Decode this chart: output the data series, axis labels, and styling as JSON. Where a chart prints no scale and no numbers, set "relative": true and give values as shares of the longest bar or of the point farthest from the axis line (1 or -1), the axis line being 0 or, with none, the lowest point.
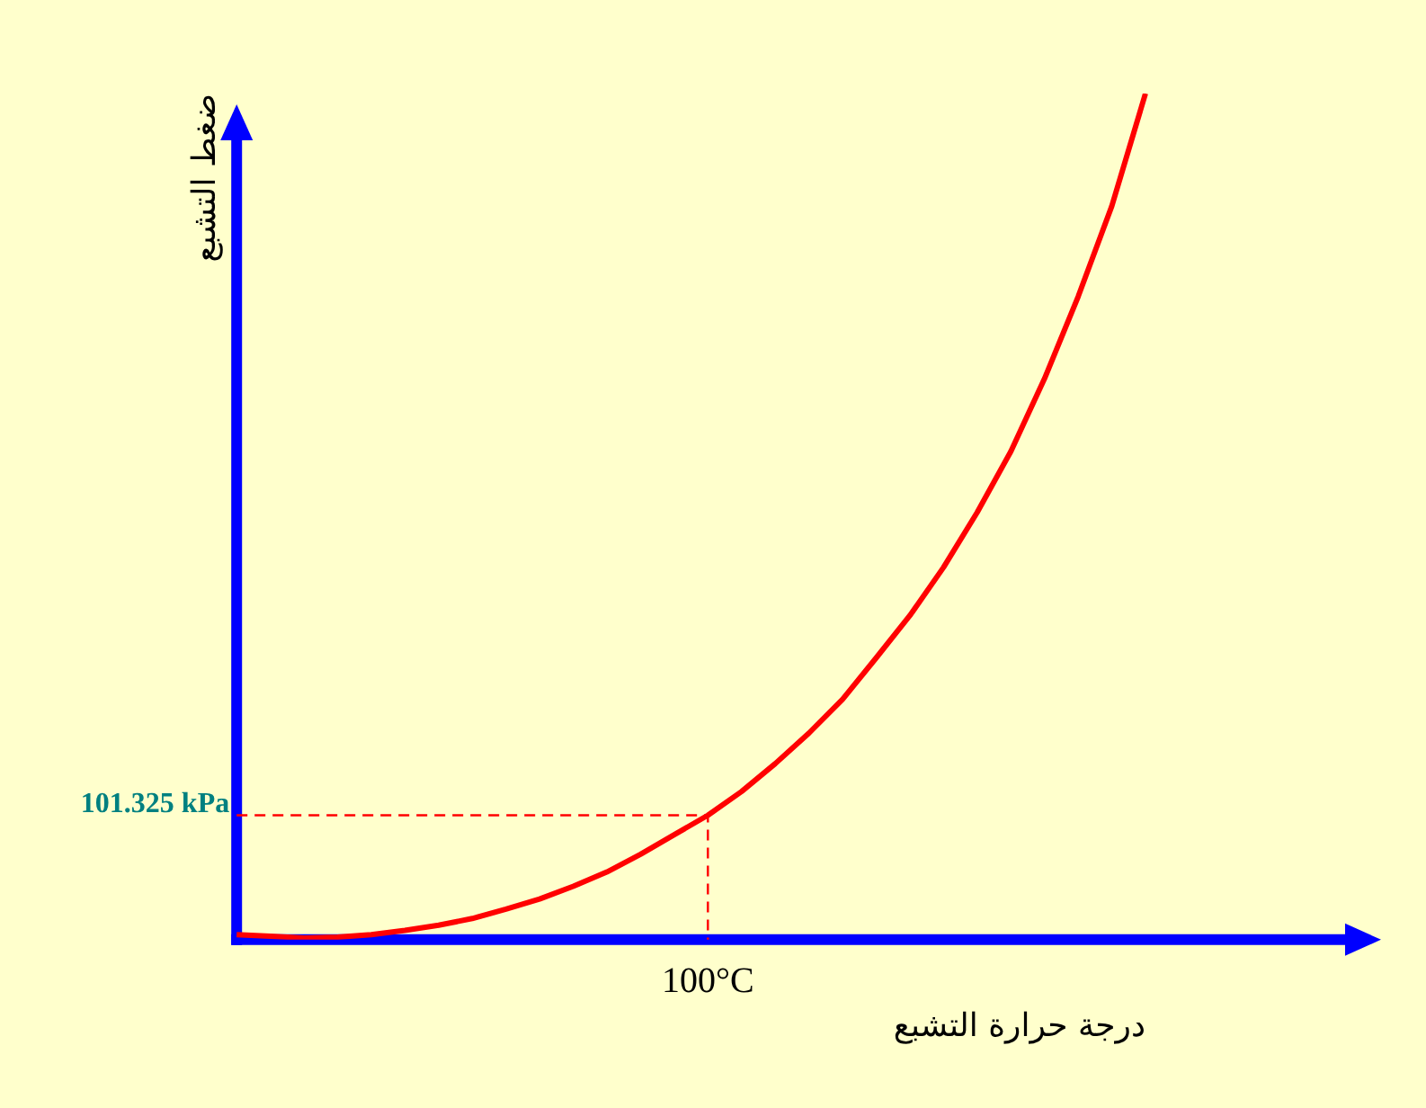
{
  "chart_data": {
    "type": "line",
    "relative": true,
    "xlabel": "درجة حرارة التشبع",
    "ylabel": "ضغط التشبع",
    "categories": [
      null,
      null,
      null,
      null,
      null,
      null,
      null,
      null,
      null,
      null,
      null,
      null,
      null,
      null,
      null,
      null,
      null,
      null,
      null,
      null,
      null,
      null,
      null,
      null,
      null,
      null,
      null,
      null
    ],
    "series": [
      {
        "color": "#ff0000",
        "values": [
          0.006,
          0.004,
          0.002,
          0.003,
          0.006,
          0.011,
          0.017,
          0.025,
          0.036,
          0.048,
          0.063,
          0.08,
          0.101,
          0.124,
          0.147,
          0.175,
          0.208,
          0.244,
          0.284,
          0.333,
          0.383,
          0.44,
          0.505,
          0.577,
          0.663,
          0.76,
          0.867,
          1
        ]
      }
    ],
    "ref_lines": [
      {
        "axis": "y",
        "value": 0.147,
        "label": "101.325 kPa",
        "color": "#ff0000",
        "line_style": "dashed"
      }
    ],
    "annotations": [
      "100°C"
    ],
    "marker": "none",
    "line_style": "solid",
    "grid": false,
    "legend": false
  }
}
